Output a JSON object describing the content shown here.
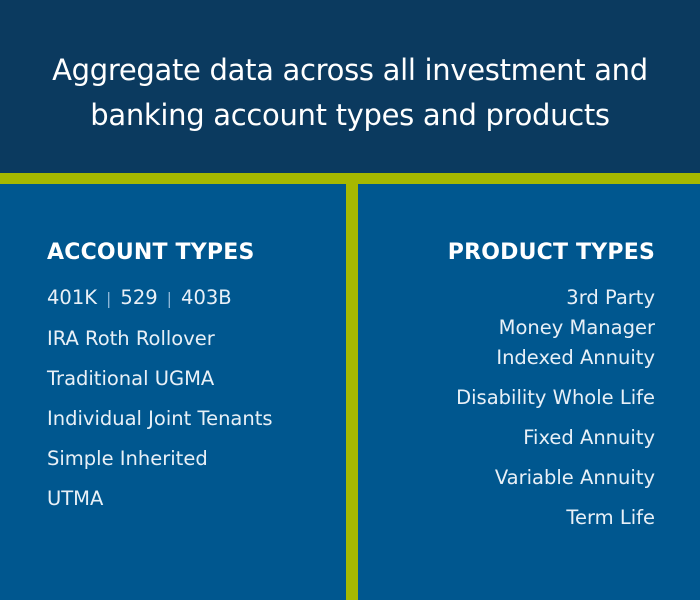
{
  "title": {
    "line1": "Aggregate data across all investment and",
    "line2": "banking account types and products"
  },
  "colors": {
    "header_bg": "#0b3a5f",
    "panel_bg": "#00578f",
    "accent": "#a6b800"
  },
  "account_types": {
    "heading": "ACCOUNT TYPES",
    "first_row": [
      "401K",
      "529",
      "403B"
    ],
    "items": [
      "IRA Roth Rollover",
      "Traditional UGMA",
      "Individual Joint Tenants",
      "Simple Inherited",
      "UTMA"
    ]
  },
  "product_types": {
    "heading": "PRODUCT TYPES",
    "items": [
      "3rd Party",
      "Money Manager",
      "Indexed Annuity",
      "Disability Whole Life",
      "Fixed Annuity",
      "Variable Annuity",
      "Term Life"
    ]
  }
}
